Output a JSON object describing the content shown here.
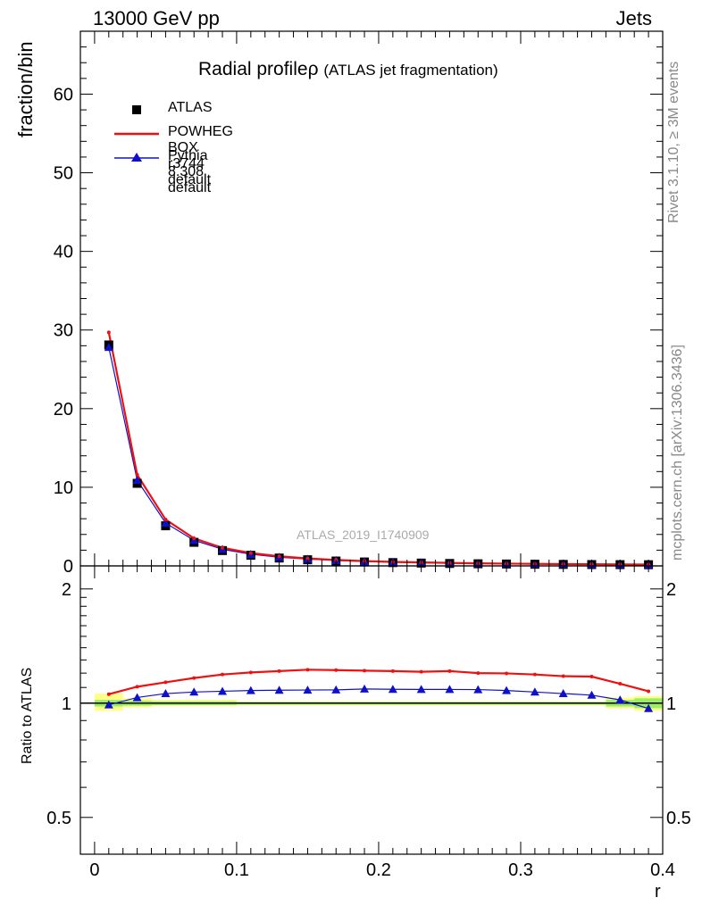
{
  "header": {
    "left": "13000 GeV pp",
    "right": "Jets"
  },
  "side_labels": {
    "top": "Rivet 3.1.10, ≥ 3M events",
    "bottom": "mcplots.cern.ch [arXiv:1306.3436]"
  },
  "watermark": "ATLAS_2019_I1740909",
  "colors": {
    "atlas": "#000000",
    "powheg": "#ee1111",
    "pythia": "#1010cc",
    "band_inner": "#99ee66",
    "band_outer": "#ffff88"
  },
  "chart_data": [
    {
      "type": "line",
      "panel": "main",
      "title": "Radial profile",
      "title_symbol": "ρ",
      "title_suffix": "(ATLAS jet fragmentation)",
      "ylabel": "fraction/bin",
      "ylim": [
        0,
        68
      ],
      "yticks": [
        0,
        10,
        20,
        30,
        40,
        50,
        60
      ],
      "x": [
        0.01,
        0.03,
        0.05,
        0.07,
        0.09,
        0.11,
        0.13,
        0.15,
        0.17,
        0.19,
        0.21,
        0.23,
        0.25,
        0.27,
        0.29,
        0.31,
        0.33,
        0.35,
        0.37,
        0.39
      ],
      "series": [
        {
          "name": "ATLAS",
          "marker": "square",
          "values": [
            28.1,
            10.5,
            5.1,
            3.0,
            1.95,
            1.35,
            1.0,
            0.78,
            0.62,
            0.5,
            0.42,
            0.36,
            0.31,
            0.27,
            0.24,
            0.21,
            0.19,
            0.17,
            0.16,
            0.15
          ]
        },
        {
          "name": "POWHEG BOX r3744 default",
          "marker": "line",
          "values": [
            29.7,
            11.6,
            5.9,
            3.5,
            2.3,
            1.63,
            1.22,
            0.95,
            0.76,
            0.61,
            0.51,
            0.44,
            0.38,
            0.33,
            0.29,
            0.26,
            0.23,
            0.21,
            0.19,
            0.17
          ]
        },
        {
          "name": "Pythia 8.308 default",
          "marker": "triangle",
          "values": [
            27.8,
            10.9,
            5.45,
            3.25,
            2.12,
            1.48,
            1.1,
            0.86,
            0.69,
            0.56,
            0.47,
            0.4,
            0.34,
            0.3,
            0.265,
            0.23,
            0.21,
            0.18,
            0.165,
            0.145
          ]
        }
      ]
    },
    {
      "type": "line",
      "panel": "ratio",
      "ylabel": "Ratio to ATLAS",
      "xlabel": "r",
      "xlim": [
        -0.01,
        0.4
      ],
      "xticks": [
        0,
        0.1,
        0.2,
        0.3,
        0.4
      ],
      "xtick_labels": [
        "0",
        "0.1",
        "0.2",
        "0.3",
        "0.4"
      ],
      "ylog": true,
      "ylim": [
        0.4,
        2.3
      ],
      "yticks": [
        0.5,
        1,
        2
      ],
      "ytick_labels": [
        "0.5",
        "1",
        "2"
      ],
      "x": [
        0.01,
        0.03,
        0.05,
        0.07,
        0.09,
        0.11,
        0.13,
        0.15,
        0.17,
        0.19,
        0.21,
        0.23,
        0.25,
        0.27,
        0.29,
        0.31,
        0.33,
        0.35,
        0.37,
        0.39
      ],
      "series": [
        {
          "name": "POWHEG BOX r3744 default",
          "values": [
            1.056,
            1.105,
            1.135,
            1.165,
            1.19,
            1.205,
            1.215,
            1.225,
            1.222,
            1.218,
            1.215,
            1.21,
            1.215,
            1.2,
            1.198,
            1.19,
            1.178,
            1.175,
            1.125,
            1.075
          ]
        },
        {
          "name": "Pythia 8.308 default",
          "values": [
            0.99,
            1.035,
            1.06,
            1.07,
            1.075,
            1.08,
            1.082,
            1.083,
            1.084,
            1.09,
            1.088,
            1.087,
            1.087,
            1.086,
            1.08,
            1.07,
            1.06,
            1.05,
            1.02,
            0.968
          ]
        }
      ],
      "bands": [
        {
          "x0": 0.0,
          "x1": 0.02,
          "inner": [
            0.98,
            1.02
          ],
          "outer": [
            0.955,
            1.06
          ]
        },
        {
          "x0": 0.02,
          "x1": 0.04,
          "inner": [
            0.985,
            1.015
          ],
          "outer": [
            0.975,
            1.03
          ]
        },
        {
          "x0": 0.04,
          "x1": 0.1,
          "inner": [
            0.988,
            1.012
          ],
          "outer": [
            0.983,
            1.02
          ]
        },
        {
          "x0": 0.1,
          "x1": 0.36,
          "inner": [
            0.992,
            1.008
          ],
          "outer": [
            0.987,
            1.012
          ]
        },
        {
          "x0": 0.36,
          "x1": 0.38,
          "inner": [
            0.98,
            1.02
          ],
          "outer": [
            0.97,
            1.035
          ]
        },
        {
          "x0": 0.38,
          "x1": 0.4,
          "inner": [
            0.97,
            1.03
          ],
          "outer": [
            0.955,
            1.045
          ]
        }
      ]
    }
  ]
}
